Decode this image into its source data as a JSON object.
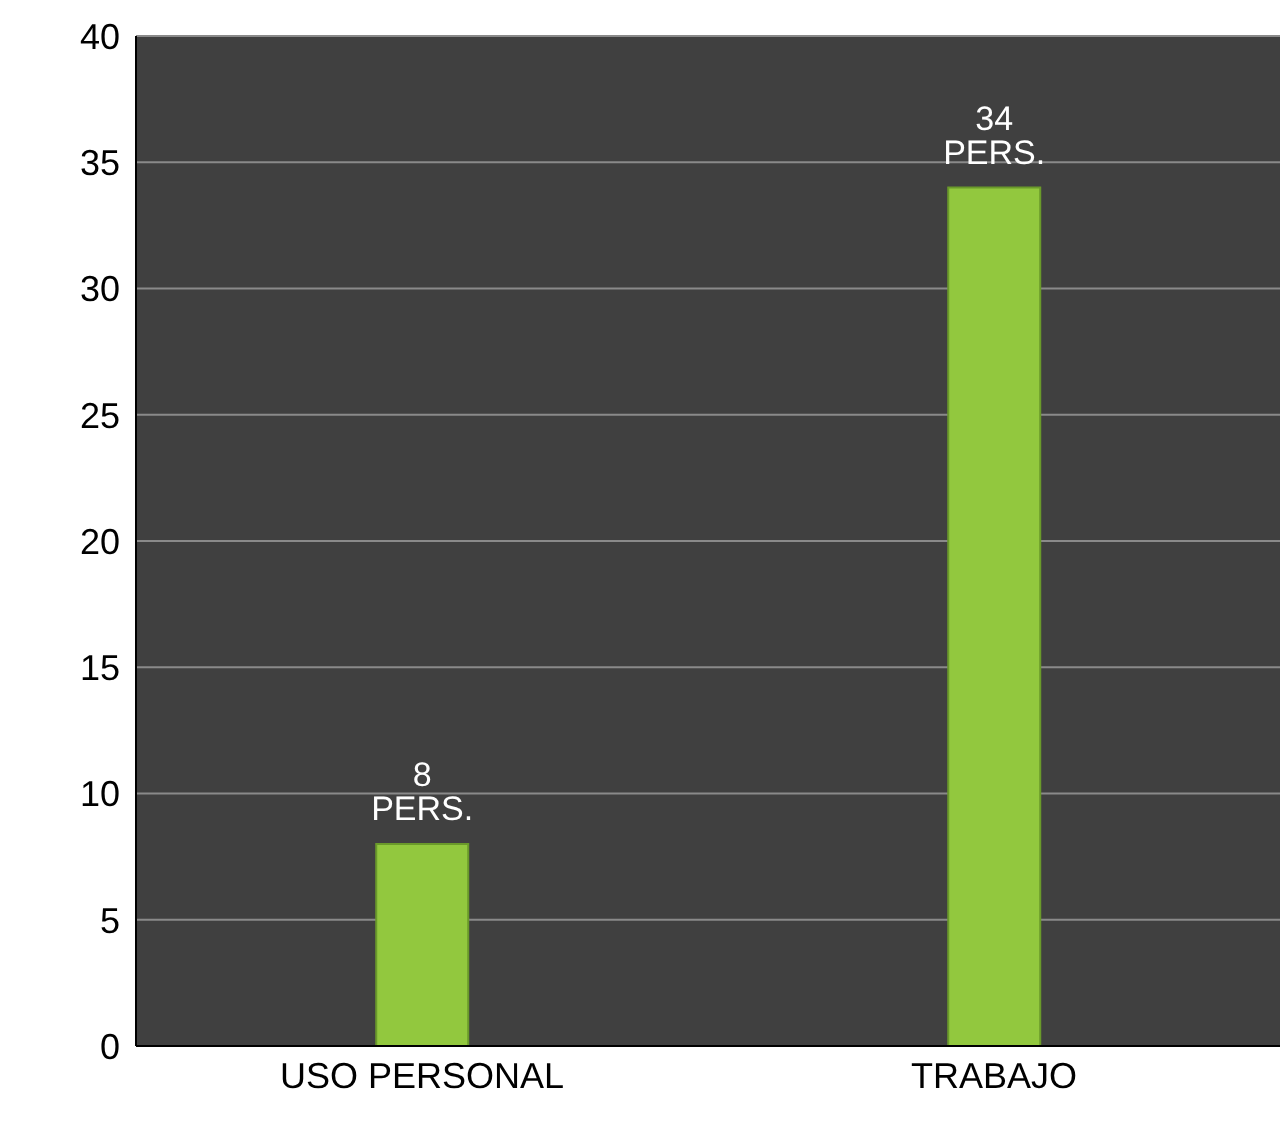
{
  "chart_data": {
    "type": "bar",
    "categories": [
      "USO PERSONAL",
      "TRABAJO"
    ],
    "values": [
      8,
      34
    ],
    "color": "#92c83e",
    "value_labels": [
      "8 PERS.",
      "34 PERS."
    ],
    "ylim": [
      0,
      40
    ],
    "yticks": [
      0,
      5,
      10,
      15,
      20,
      25,
      30,
      35,
      40
    ],
    "grid": "y"
  }
}
